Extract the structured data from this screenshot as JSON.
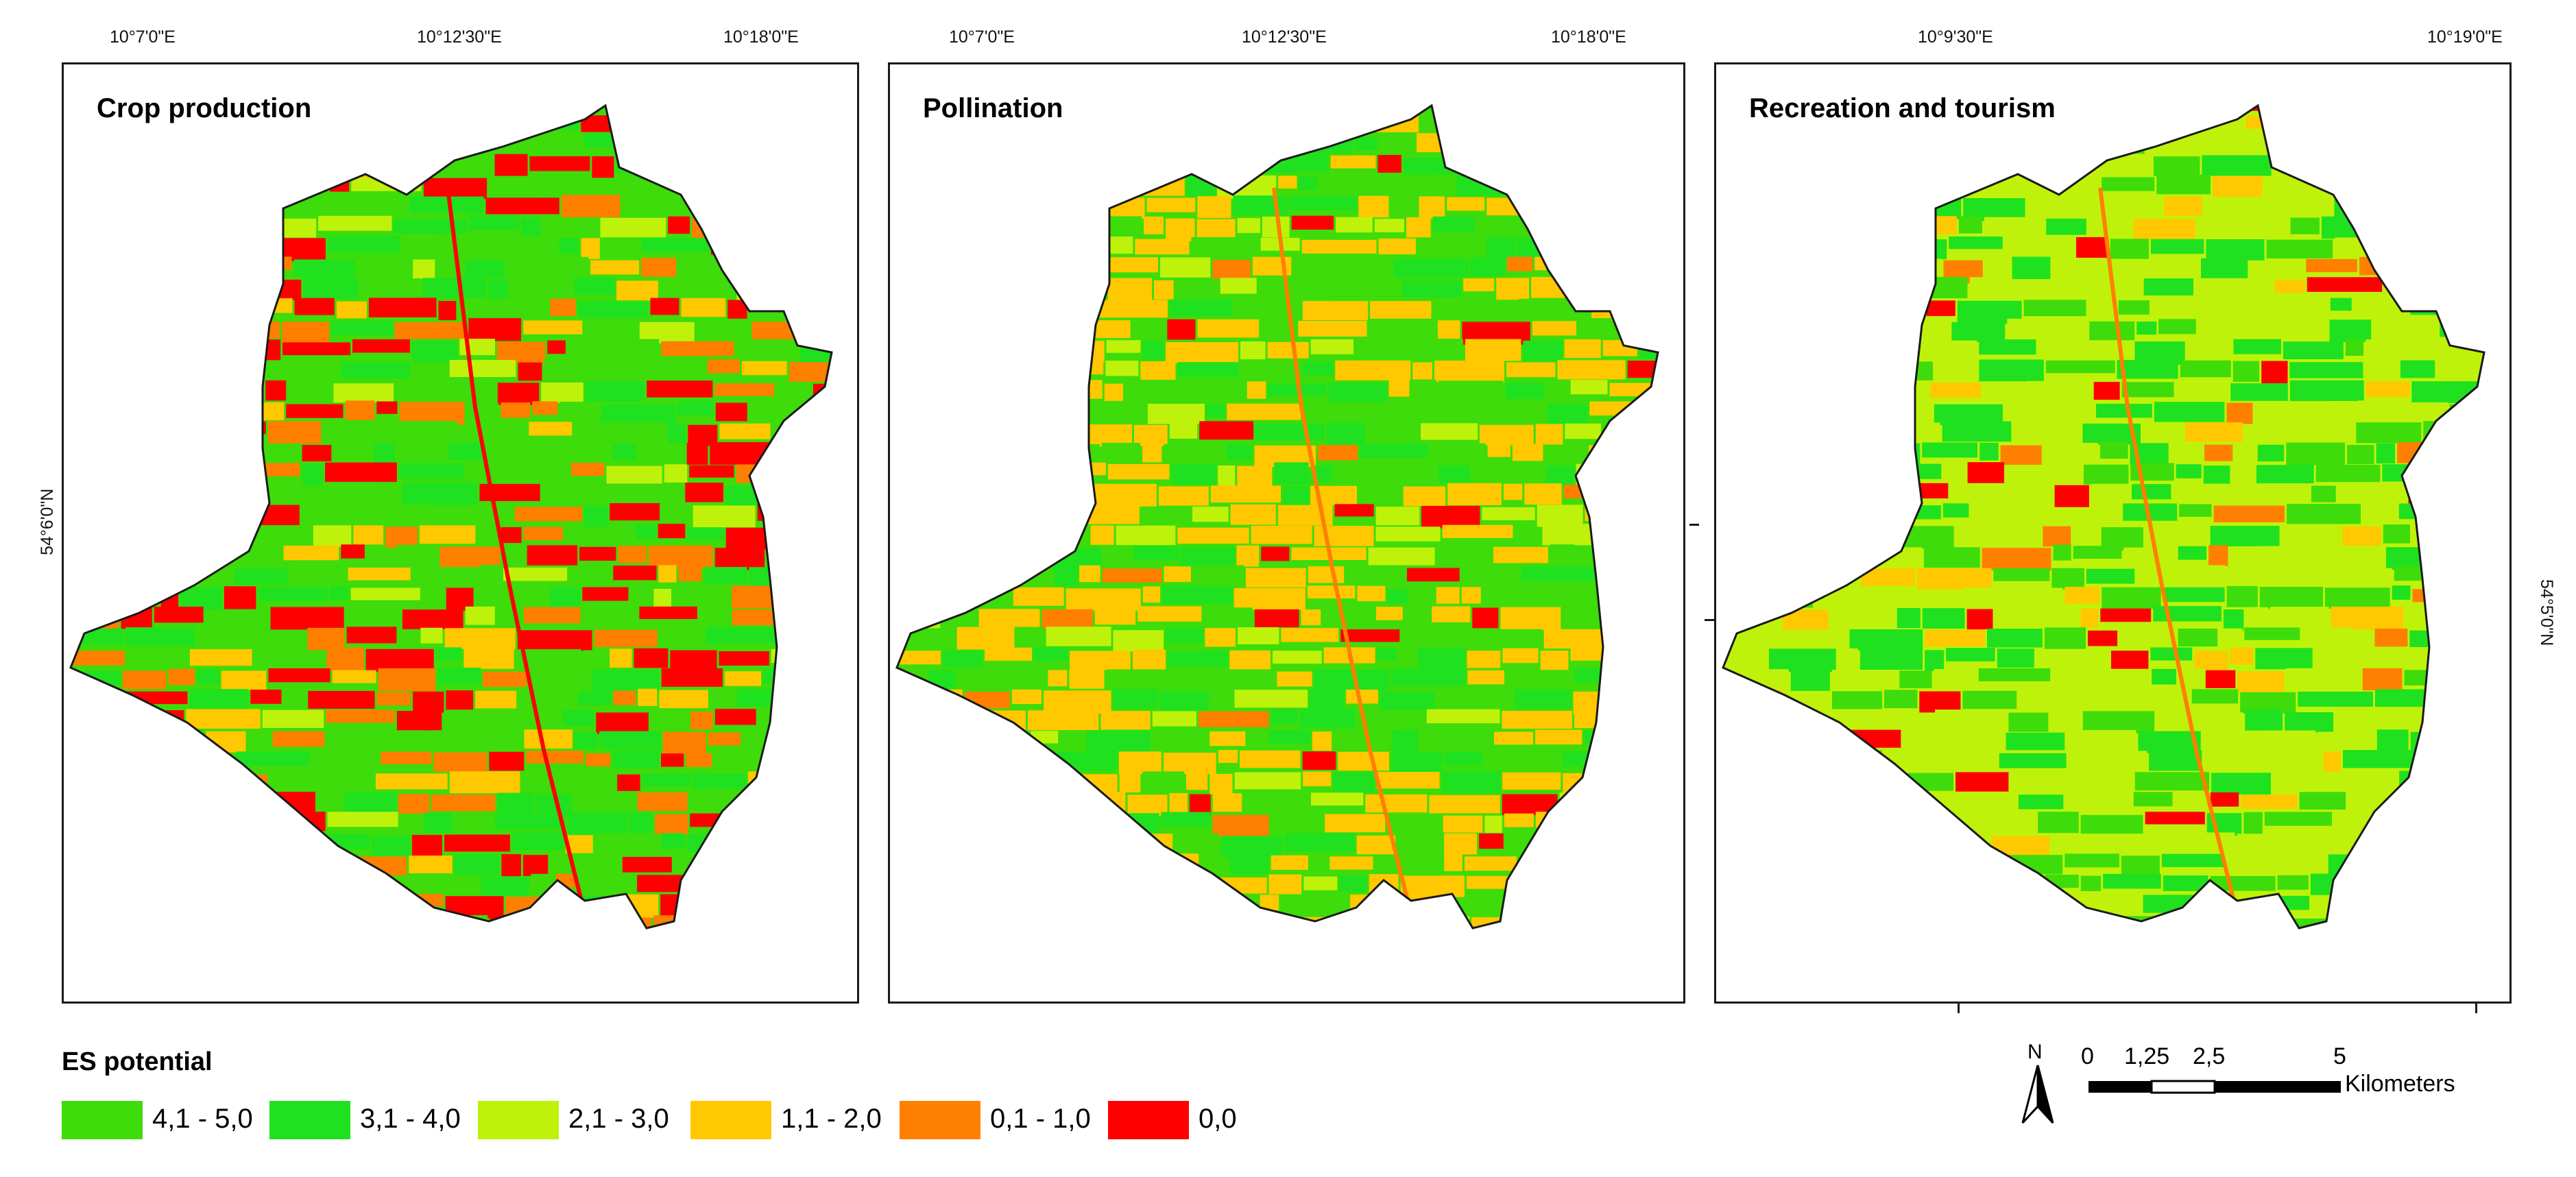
{
  "maps": [
    {
      "title": "Crop production",
      "top_ticks": [
        "10°7'0\"E",
        "10°12'30\"E",
        "10°18'0\"E"
      ],
      "side_label": "54°6'0\"N",
      "side": "left"
    },
    {
      "title": "Pollination",
      "top_ticks": [
        "10°7'0\"E",
        "10°12'30\"E",
        "10°18'0\"E"
      ]
    },
    {
      "title": "Recreation and tourism",
      "top_ticks": [
        "10°9'30\"E",
        "10°19'0\"E"
      ],
      "side_label": "54°5'0\"N",
      "side": "right"
    }
  ],
  "legend": {
    "title": "ES potential",
    "classes": [
      {
        "label": "4,1 - 5,0",
        "color": "#3ddc0a"
      },
      {
        "label": "3,1 - 4,0",
        "color": "#1fe11f"
      },
      {
        "label": "2,1 - 3,0",
        "color": "#bff20a"
      },
      {
        "label": "1,1 - 2,0",
        "color": "#ffc800"
      },
      {
        "label": "0,1 - 1,0",
        "color": "#ff7f00"
      },
      {
        "label": "0,0",
        "color": "#ff0000"
      }
    ]
  },
  "north_arrow": {
    "label": "N"
  },
  "scale_bar": {
    "ticks": [
      "0",
      "1,25",
      "2,5",
      "5"
    ],
    "unit": "Kilometers"
  }
}
